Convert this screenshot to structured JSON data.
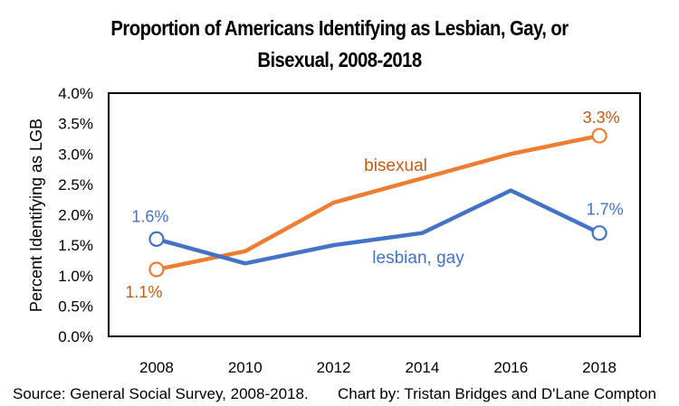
{
  "chart_data": {
    "type": "line",
    "title": "Proportion of Americans Identifying as Lesbian, Gay, or Bisexual, 2008-2018",
    "title_lines": [
      "Proportion of Americans Identifying as Lesbian, Gay, or",
      "Bisexual, 2008-2018"
    ],
    "xlabel": "",
    "ylabel": "Percent Identifying as LGB",
    "categories": [
      "2008",
      "2010",
      "2012",
      "2014",
      "2016",
      "2018"
    ],
    "ylim": [
      0,
      4.0
    ],
    "yticks": [
      0,
      0.5,
      1.0,
      1.5,
      2.0,
      2.5,
      3.0,
      3.5,
      4.0
    ],
    "ytick_labels": [
      "0.0%",
      "0.5%",
      "1.0%",
      "1.5%",
      "2.0%",
      "2.5%",
      "3.0%",
      "3.5%",
      "4.0%"
    ],
    "grid": false,
    "legend": "none (inline series labels)",
    "series": [
      {
        "name": "bisexual",
        "color": "#ED7D31",
        "label_color": "#C55A11",
        "values": [
          1.1,
          1.4,
          2.2,
          2.6,
          3.0,
          3.3
        ],
        "endpoint_labels": [
          "1.1%",
          "3.3%"
        ]
      },
      {
        "name": "lesbian, gay",
        "color": "#4472C4",
        "label_color": "#4472C4",
        "values": [
          1.6,
          1.2,
          1.5,
          1.7,
          2.4,
          1.7
        ],
        "endpoint_labels": [
          "1.6%",
          "1.7%"
        ]
      }
    ],
    "source": "Source: General Social Survey, 2008-2018.",
    "credit": "Chart by: Tristan Bridges and D'Lane Compton"
  }
}
